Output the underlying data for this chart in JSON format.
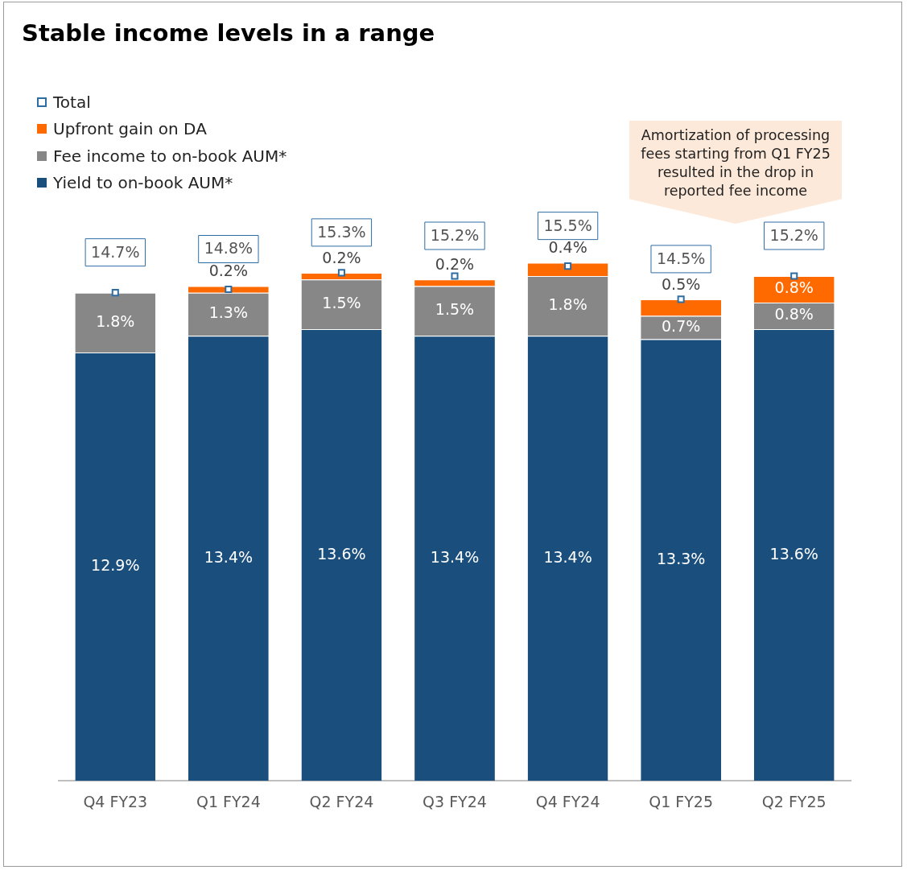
{
  "chart_data": {
    "type": "bar",
    "title": "Stable income levels in a range",
    "stacked": true,
    "legend": "top left",
    "grid": false,
    "tick_labels": "x",
    "marker": "square",
    "categories": [
      "Q4 FY23",
      "Q1 FY24",
      "Q2 FY24",
      "Q3 FY24",
      "Q4 FY24",
      "Q1 FY25",
      "Q2 FY25"
    ],
    "series": [
      {
        "name": "Yield to on-book AUM*",
        "color": "#1a4e7c",
        "values": [
          12.9,
          13.4,
          13.6,
          13.4,
          13.4,
          13.3,
          13.6
        ],
        "value_labels": [
          "12.9%",
          "13.4%",
          "13.6%",
          "13.4%",
          "13.4%",
          "13.3%",
          "13.6%"
        ]
      },
      {
        "name": "Fee income to on-book AUM*",
        "color": "#878787",
        "values": [
          1.8,
          1.3,
          1.5,
          1.5,
          1.8,
          0.7,
          0.8
        ],
        "value_labels": [
          "1.8%",
          "1.3%",
          "1.5%",
          "1.5%",
          "1.8%",
          "0.7%",
          "0.8%"
        ]
      },
      {
        "name": "Upfront gain on DA",
        "color": "#ff6a00",
        "values": [
          null,
          0.2,
          0.2,
          0.2,
          0.4,
          0.5,
          0.8
        ],
        "value_labels": [
          null,
          "0.2%",
          "0.2%",
          "0.2%",
          "0.4%",
          "0.5%",
          "0.8%"
        ]
      },
      {
        "name": "Total",
        "type": "scatter",
        "color": "#2e6da4",
        "values": [
          14.7,
          14.8,
          15.3,
          15.2,
          15.5,
          14.5,
          15.2
        ],
        "value_labels": [
          "14.7%",
          "14.8%",
          "15.3%",
          "15.2%",
          "15.5%",
          "14.5%",
          "15.2%"
        ]
      }
    ],
    "annotations": [
      "Amortization of processing fees starting from Q1 FY25 resulted in the drop in reported fee income"
    ]
  }
}
